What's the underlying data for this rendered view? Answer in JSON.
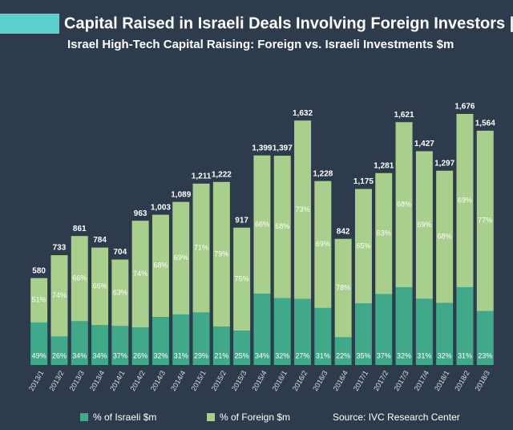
{
  "chart_data": {
    "type": "stacked_bar",
    "title": "Capital Raised in Israeli Deals Involving Foreign Investors |",
    "subtitle": "Israel High-Tech Capital Raising: Foreign vs. Israeli Investments $m",
    "source": "Source: IVC Research Center",
    "categories": [
      "2013/1",
      "2013/2",
      "2013/3",
      "2013/4",
      "2014/1",
      "2014/2",
      "2014/3",
      "2014/4",
      "2015/1",
      "2015/2",
      "2015/3",
      "2015/4",
      "2016/1",
      "2016/2",
      "2016/3",
      "2016/4",
      "2017/1",
      "2017/2",
      "2017/3",
      "2017/4",
      "2018/1",
      "2018/2",
      "2018/3"
    ],
    "totals": {
      "values": [
        580,
        733,
        861,
        784,
        704,
        963,
        1003,
        1089,
        1211,
        1222,
        917,
        1399,
        1397,
        1632,
        1228,
        842,
        1175,
        1281,
        1621,
        1427,
        1297,
        1676,
        1564
      ],
      "value_labels": [
        "580",
        "733",
        "861",
        "784",
        "704",
        "963",
        "1,003",
        "1,089",
        "1,211",
        "1,222",
        "917",
        "1,399",
        "1,397",
        "1,632",
        "1,228",
        "842",
        "1,175",
        "1,281",
        "1,621",
        "1,427",
        "1,297",
        "1,676",
        "1,564"
      ]
    },
    "series": [
      {
        "name": "% of Israeli $m",
        "color": "#3fa98a",
        "values": [
          49,
          26,
          34,
          34,
          37,
          26,
          32,
          31,
          29,
          21,
          25,
          34,
          32,
          27,
          31,
          22,
          35,
          37,
          32,
          31,
          32,
          31,
          23
        ],
        "value_labels": [
          "49%",
          "26%",
          "34%",
          "34%",
          "37%",
          "26%",
          "32%",
          "31%",
          "29%",
          "21%",
          "25%",
          "34%",
          "32%",
          "27%",
          "31%",
          "22%",
          "35%",
          "37%",
          "32%",
          "31%",
          "32%",
          "31%",
          "23%"
        ]
      },
      {
        "name": "% of Foreign $m",
        "color": "#a8cf8c",
        "values": [
          51,
          74,
          66,
          66,
          63,
          74,
          68,
          69,
          71,
          79,
          75,
          66,
          68,
          73,
          69,
          78,
          65,
          63,
          68,
          69,
          68,
          69,
          77
        ],
        "value_labels": [
          "51%",
          "74%",
          "66%",
          "66%",
          "63%",
          "74%",
          "68%",
          "69%",
          "71%",
          "79%",
          "75%",
          "66%",
          "68%",
          "73%",
          "69%",
          "78%",
          "65%",
          "63%",
          "68%",
          "69%",
          "68%",
          "69%",
          "77%"
        ]
      }
    ],
    "legend": "bottom"
  }
}
